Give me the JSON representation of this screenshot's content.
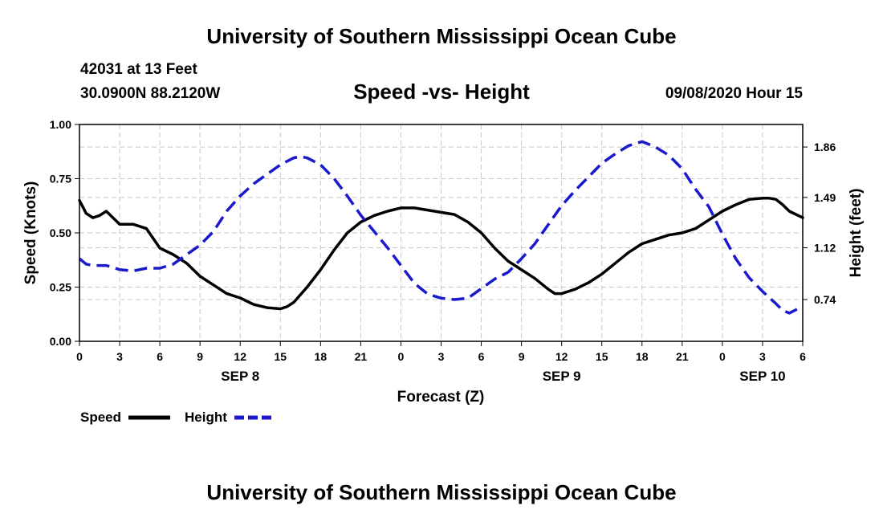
{
  "header": {
    "title": "University of Southern Mississippi Ocean Cube",
    "station": "42031 at 13 Feet",
    "coords": "30.0900N 88.2120W",
    "subtitle": "Speed -vs- Height",
    "datetime": "09/08/2020 Hour 15"
  },
  "footer": {
    "title": "University of Southern Mississippi Ocean Cube"
  },
  "chart_data": {
    "type": "line",
    "title": "Speed -vs- Height",
    "xlabel": "Forecast (Z)",
    "ylabel": "Speed (Knots)",
    "y2label": "Height (feet)",
    "x_range": [
      0,
      54
    ],
    "ylim": [
      0,
      1.0
    ],
    "y2lim": [
      0.4332,
      2.0256
    ],
    "x_ticks": [
      0,
      3,
      6,
      9,
      12,
      15,
      18,
      21,
      24,
      27,
      30,
      33,
      36,
      39,
      42,
      45,
      48,
      51,
      54
    ],
    "x_tick_labels": [
      "0",
      "3",
      "6",
      "9",
      "12",
      "15",
      "18",
      "21",
      "0",
      "3",
      "6",
      "9",
      "12",
      "15",
      "18",
      "21",
      "0",
      "3",
      "6"
    ],
    "day_labels": [
      {
        "x": 12,
        "label": "SEP 8"
      },
      {
        "x": 36,
        "label": "SEP 9"
      },
      {
        "x": 51,
        "label": "SEP 10"
      }
    ],
    "y_ticks": [
      0,
      0.25,
      0.5,
      0.75,
      1.0
    ],
    "y_tick_labels": [
      "0.00",
      "0.25",
      "0.50",
      "0.75",
      "1.00"
    ],
    "y2_ticks": [
      0.74,
      1.12,
      1.49,
      1.86
    ],
    "y2_tick_labels": [
      "0.74",
      "1.12",
      "1.49",
      "1.86"
    ],
    "grid": true,
    "legend_position": "bottom-left",
    "series": [
      {
        "name": "Speed",
        "axis": "left",
        "color": "#000000",
        "style": "solid",
        "x": [
          0,
          0.5,
          1,
          1.5,
          2,
          2.5,
          3,
          4,
          5,
          6,
          7,
          8,
          9,
          10,
          11,
          12,
          13,
          14,
          15,
          15.5,
          16,
          17,
          18,
          19,
          20,
          21,
          22,
          23,
          24,
          25,
          26,
          27,
          28,
          29,
          30,
          31,
          32,
          33,
          34,
          35,
          35.5,
          36,
          37,
          38,
          39,
          40,
          41,
          42,
          43,
          44,
          45,
          46,
          47,
          48,
          49,
          50,
          51,
          51.5,
          52,
          52.5,
          53,
          54
        ],
        "values": [
          0.65,
          0.59,
          0.57,
          0.58,
          0.6,
          0.57,
          0.54,
          0.54,
          0.52,
          0.43,
          0.4,
          0.36,
          0.3,
          0.26,
          0.22,
          0.2,
          0.17,
          0.155,
          0.15,
          0.16,
          0.18,
          0.25,
          0.33,
          0.42,
          0.5,
          0.55,
          0.58,
          0.6,
          0.615,
          0.615,
          0.605,
          0.595,
          0.585,
          0.55,
          0.5,
          0.43,
          0.37,
          0.33,
          0.29,
          0.24,
          0.22,
          0.22,
          0.24,
          0.27,
          0.31,
          0.36,
          0.41,
          0.45,
          0.47,
          0.49,
          0.5,
          0.52,
          0.56,
          0.6,
          0.63,
          0.655,
          0.66,
          0.66,
          0.655,
          0.63,
          0.6,
          0.57
        ]
      },
      {
        "name": "Height",
        "axis": "right",
        "color": "#1a1acc",
        "style": "dashed",
        "x": [
          0,
          0.5,
          1,
          2,
          3,
          4,
          5,
          6,
          7,
          8,
          9,
          10,
          11,
          12,
          13,
          14,
          15,
          16,
          16.5,
          17,
          18,
          19,
          20,
          21,
          22,
          23,
          24,
          25,
          26,
          27,
          28,
          29,
          30,
          31,
          32,
          33,
          34,
          35,
          36,
          37,
          38,
          39,
          40,
          41,
          42,
          43,
          44,
          45,
          46,
          47,
          48,
          49,
          50,
          51,
          52,
          52.5,
          53,
          54
        ],
        "values": [
          1.04,
          1.0,
          0.99,
          0.99,
          0.96,
          0.95,
          0.97,
          0.97,
          1.0,
          1.07,
          1.14,
          1.24,
          1.39,
          1.5,
          1.59,
          1.66,
          1.73,
          1.78,
          1.79,
          1.78,
          1.73,
          1.63,
          1.5,
          1.36,
          1.24,
          1.12,
          0.99,
          0.86,
          0.78,
          0.75,
          0.74,
          0.75,
          0.82,
          0.89,
          0.94,
          1.04,
          1.15,
          1.29,
          1.43,
          1.54,
          1.64,
          1.74,
          1.81,
          1.87,
          1.9,
          1.86,
          1.8,
          1.7,
          1.55,
          1.42,
          1.22,
          1.04,
          0.9,
          0.8,
          0.71,
          0.66,
          0.64,
          0.69
        ]
      }
    ]
  }
}
